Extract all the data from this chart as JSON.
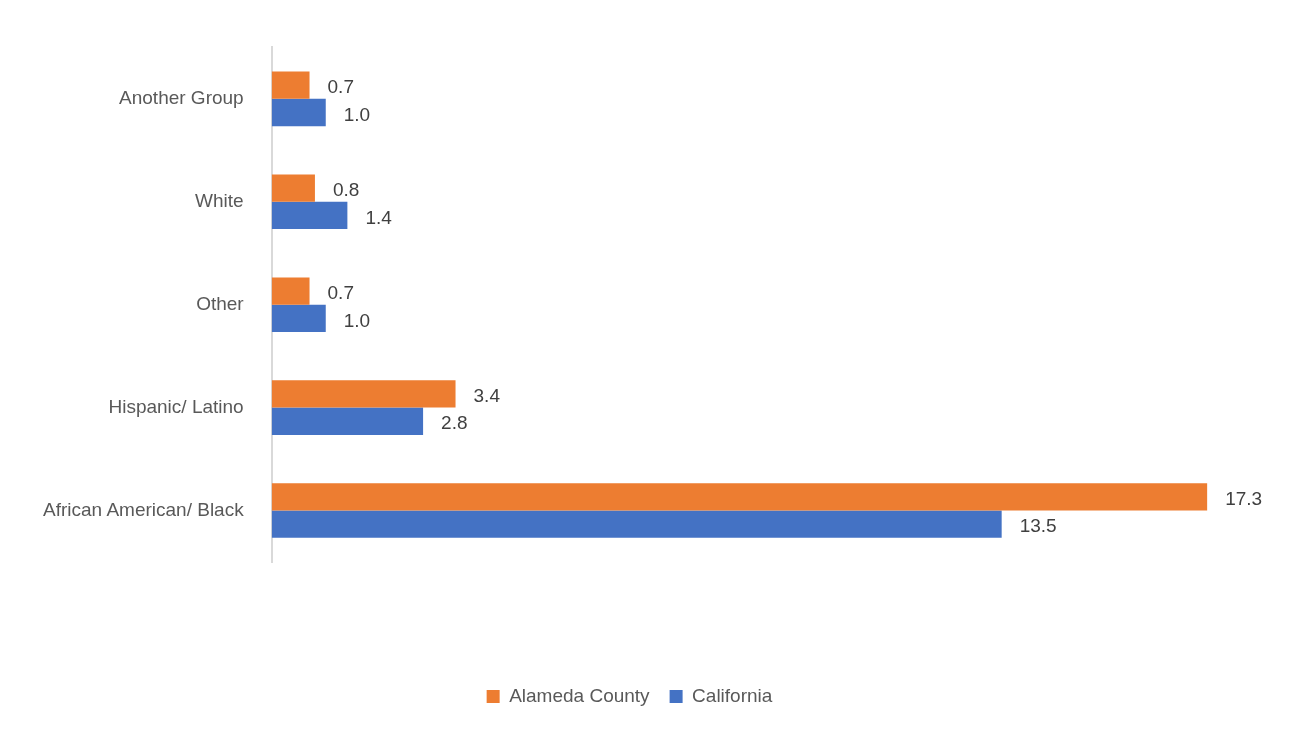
{
  "chart_data": {
    "type": "bar",
    "orientation": "horizontal",
    "categories": [
      "Another Group",
      "White",
      "Other",
      "Hispanic/ Latino",
      "African American/ Black"
    ],
    "series": [
      {
        "name": "Alameda County",
        "color": "#ed7d31",
        "values": [
          0.7,
          0.8,
          0.7,
          3.4,
          17.3
        ],
        "value_labels": [
          "0.7",
          "0.8",
          "0.7",
          "3.4",
          "17.3"
        ]
      },
      {
        "name": "California",
        "color": "#4472c4",
        "values": [
          1.0,
          1.4,
          1.0,
          2.8,
          13.5
        ],
        "value_labels": [
          "1.0",
          "1.4",
          "1.0",
          "2.8",
          "13.5"
        ]
      }
    ],
    "legend": "bottom",
    "tick_labels": "y"
  }
}
